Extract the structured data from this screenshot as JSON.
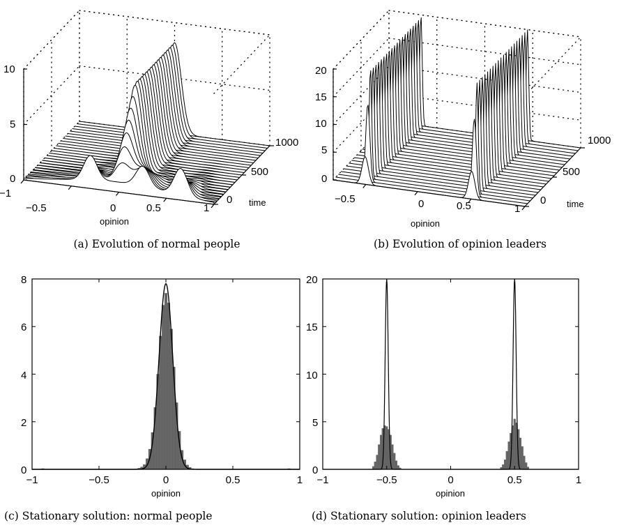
{
  "captions": {
    "a": "(a) Evolution of normal people",
    "b": "(b) Evolution of opinion leaders",
    "c": "(c) Stationary solution: normal people",
    "d": "(d) Stationary solution: opinion leaders"
  },
  "chart_data": [
    {
      "id": "a",
      "type": "line",
      "view": "3d-waterfall",
      "xlabel": "opinion",
      "ylabel": "time",
      "zlabel": "",
      "xlim": [
        -1,
        1
      ],
      "ylim": [
        0,
        1000
      ],
      "zlim": [
        0,
        10
      ],
      "xticks": [
        -1,
        -0.5,
        0,
        0.5,
        1
      ],
      "xtick_labels": [
        "−1",
        "−0.5",
        "0",
        "0.5",
        "1"
      ],
      "yticks": [
        0,
        500,
        1000
      ],
      "zticks": [
        0,
        5,
        10
      ],
      "grid": true,
      "time_slices": 25,
      "description_values": {
        "initial": "broad low bump plus small bumps near -0.3, 0.25 and 0.65",
        "final_peak_location": 0,
        "final_peak_height": 8.2
      }
    },
    {
      "id": "b",
      "type": "line",
      "view": "3d-waterfall",
      "xlabel": "opinion",
      "ylabel": "time",
      "zlabel": "",
      "xlim": [
        -0.8,
        1
      ],
      "ylim": [
        0,
        1000
      ],
      "zlim": [
        0,
        20
      ],
      "xticks": [
        -0.5,
        0,
        0.5,
        1
      ],
      "xtick_labels": [
        "−0.5",
        "0",
        "0.5",
        "1"
      ],
      "yticks": [
        0,
        500,
        1000
      ],
      "zticks": [
        0,
        5,
        10,
        15,
        20
      ],
      "grid": true,
      "time_slices": 22,
      "description_values": {
        "peak_locations": [
          -0.5,
          0.5
        ],
        "final_peak_height": 20
      }
    },
    {
      "id": "c",
      "type": "bar",
      "xlabel": "opinion",
      "ylabel": "",
      "xlim": [
        -1,
        1
      ],
      "ylim": [
        0,
        8
      ],
      "xticks": [
        -1,
        -0.5,
        0,
        0.5,
        1
      ],
      "xtick_labels": [
        "−1",
        "−0.5",
        "0",
        "0.5",
        "1"
      ],
      "yticks": [
        0,
        2,
        4,
        6,
        8
      ],
      "grid": false,
      "histogram": {
        "bin_width": 0.02,
        "x": [
          -0.92,
          -0.22,
          -0.2,
          -0.18,
          -0.16,
          -0.14,
          -0.12,
          -0.1,
          -0.08,
          -0.06,
          -0.04,
          -0.02,
          0.0,
          0.02,
          0.04,
          0.06,
          0.08,
          0.1,
          0.12,
          0.14,
          0.16,
          0.18,
          0.2,
          0.92
        ],
        "values": [
          0.03,
          0.02,
          0.05,
          0.1,
          0.2,
          0.45,
          0.85,
          1.55,
          2.6,
          4.0,
          5.6,
          6.9,
          7.4,
          7.0,
          5.9,
          4.3,
          2.8,
          1.6,
          0.8,
          0.4,
          0.18,
          0.08,
          0.03,
          0.03
        ]
      },
      "curve": {
        "name": "",
        "center": 0,
        "peak": 7.8,
        "sigma": 0.051
      }
    },
    {
      "id": "d",
      "type": "bar",
      "xlabel": "opinion",
      "ylabel": "",
      "xlim": [
        -1,
        1
      ],
      "ylim": [
        0,
        20
      ],
      "xticks": [
        -1,
        -0.5,
        0,
        0.5,
        1
      ],
      "xtick_labels": [
        "−1",
        "−0.5",
        "0",
        "0.5",
        "1"
      ],
      "yticks": [
        0,
        5,
        10,
        15,
        20
      ],
      "grid": false,
      "histogram": {
        "bin_width": 0.015,
        "x": [
          -0.605,
          -0.59,
          -0.575,
          -0.56,
          -0.545,
          -0.53,
          -0.515,
          -0.5,
          -0.485,
          -0.47,
          -0.455,
          -0.44,
          -0.425,
          -0.41,
          -0.395,
          0.395,
          0.41,
          0.425,
          0.44,
          0.455,
          0.47,
          0.485,
          0.5,
          0.515,
          0.53,
          0.545,
          0.56,
          0.575,
          0.59,
          0.605
        ],
        "values": [
          0.3,
          0.8,
          1.5,
          2.6,
          3.6,
          4.3,
          4.6,
          4.5,
          4.2,
          3.6,
          2.6,
          1.7,
          0.9,
          0.4,
          0.15,
          0.2,
          0.5,
          1.0,
          1.9,
          2.9,
          3.8,
          4.6,
          5.3,
          4.9,
          4.2,
          3.3,
          2.4,
          1.4,
          0.7,
          0.25
        ]
      },
      "curve": {
        "name": "",
        "centers": [
          -0.5,
          0.5
        ],
        "peak": 20,
        "sigma": 0.012
      }
    }
  ]
}
